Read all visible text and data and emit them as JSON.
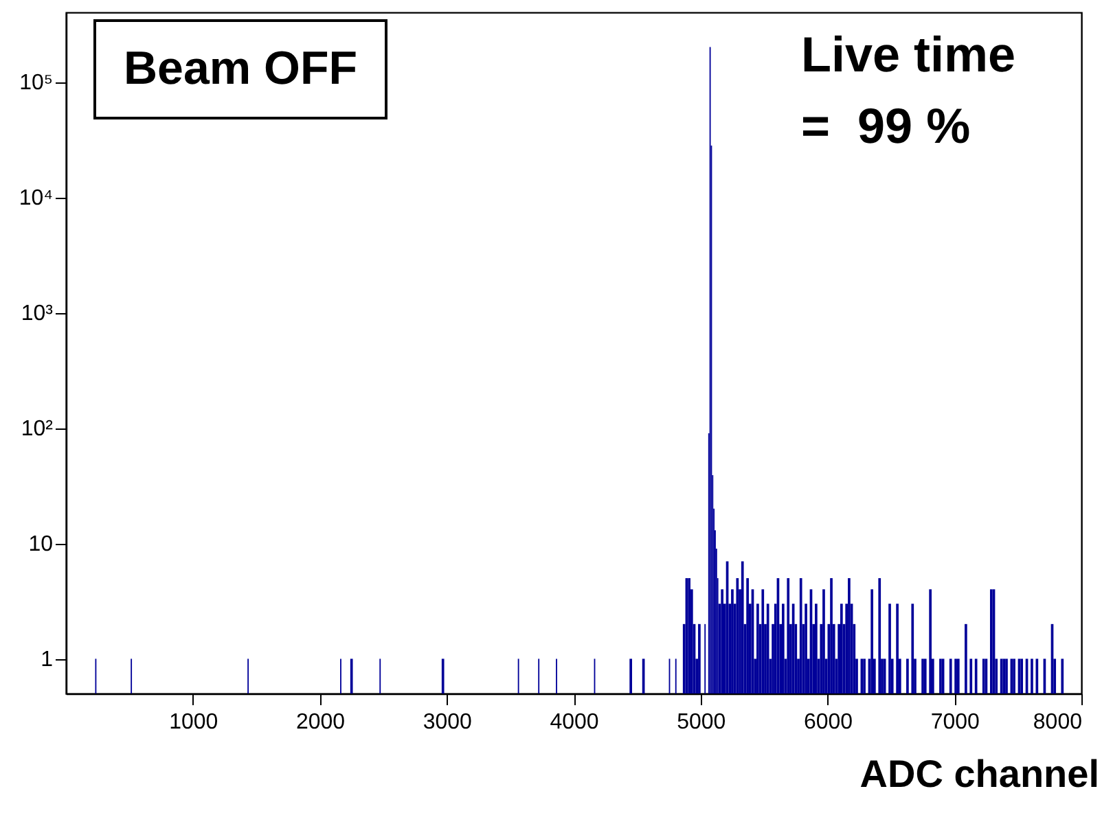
{
  "chart_data": {
    "type": "histogram",
    "xlabel": "ADC channel",
    "annotations": [
      "Beam OFF",
      "Live time\n=  99 %"
    ],
    "color": "#000099",
    "log": "y",
    "grid": false,
    "xlim": [
      0,
      8000
    ],
    "xticks": [
      1000,
      2000,
      3000,
      4000,
      5000,
      6000,
      7000,
      8000
    ],
    "ylim": [
      0.5,
      400000
    ],
    "yticks": [
      1,
      10,
      {
        "value": 100,
        "label": "10²"
      },
      {
        "value": 1000,
        "label": "10³"
      },
      {
        "value": 10000,
        "label": "10⁴"
      },
      {
        "value": 100000,
        "label": "10⁵"
      }
    ],
    "bins": [
      230,
      240,
      510,
      520,
      1430,
      1440,
      2160,
      2170,
      2240,
      2260,
      2470,
      2480,
      2960,
      2980,
      3560,
      3570,
      3720,
      3730,
      3860,
      3870,
      4160,
      4170,
      4440,
      4460,
      4540,
      4560,
      4750,
      4760,
      4800,
      4810,
      4860,
      4880,
      4900,
      4920,
      4940,
      4960,
      4980,
      5000,
      5030,
      5040,
      5060,
      5070,
      5080,
      5090,
      5100,
      5110,
      5120,
      5130,
      5140,
      5160,
      5180,
      5200,
      5220,
      5240,
      5260,
      5280,
      5300,
      5320,
      5340,
      5360,
      5380,
      5400,
      5420,
      5440,
      5460,
      5480,
      5500,
      5520,
      5540,
      5560,
      5580,
      5600,
      5620,
      5640,
      5660,
      5680,
      5700,
      5720,
      5740,
      5760,
      5780,
      5800,
      5820,
      5840,
      5860,
      5880,
      5900,
      5920,
      5940,
      5960,
      5980,
      6000,
      6020,
      6040,
      6060,
      6080,
      6100,
      6120,
      6140,
      6160,
      6180,
      6200,
      6220,
      6240,
      6260,
      6280,
      6300,
      6320,
      6340,
      6360,
      6380,
      6400,
      6420,
      6440,
      6460,
      6480,
      6500,
      6520,
      6540,
      6560,
      6580,
      6620,
      6640,
      6660,
      6680,
      6700,
      6740,
      6760,
      6780,
      6800,
      6820,
      6840,
      6880,
      6900,
      6920,
      6960,
      6980,
      7000,
      7020,
      7040,
      7080,
      7100,
      7120,
      7140,
      7160,
      7180,
      7220,
      7240,
      7260,
      7280,
      7300,
      7320,
      7340,
      7360,
      7380,
      7400,
      7420,
      7440,
      7460,
      7480,
      7500,
      7520,
      7540,
      7560,
      7580,
      7600,
      7620,
      7640,
      7660,
      7700,
      7720,
      7760,
      7780,
      7800,
      7840,
      7860
    ],
    "values": [
      1,
      null,
      1,
      null,
      1,
      null,
      1,
      null,
      1,
      null,
      1,
      null,
      1,
      null,
      1,
      null,
      1,
      null,
      1,
      null,
      1,
      null,
      1,
      null,
      1,
      null,
      1,
      null,
      1,
      null,
      2,
      5,
      5,
      4,
      2,
      1,
      2,
      null,
      2,
      null,
      90,
      200000,
      28000,
      39,
      20,
      13,
      9,
      5,
      3,
      4,
      3,
      7,
      3,
      4,
      3,
      5,
      4,
      7,
      2,
      5,
      3,
      4,
      1,
      3,
      2,
      4,
      2,
      3,
      1,
      2,
      3,
      5,
      2,
      3,
      1,
      5,
      2,
      3,
      2,
      1,
      5,
      2,
      3,
      1,
      4,
      2,
      3,
      1,
      2,
      4,
      1,
      2,
      5,
      2,
      1,
      2,
      3,
      2,
      3,
      5,
      3,
      2,
      1,
      null,
      1,
      1,
      null,
      1,
      4,
      1,
      null,
      5,
      1,
      1,
      null,
      3,
      1,
      null,
      3,
      1,
      null,
      1,
      null,
      3,
      1,
      null,
      1,
      1,
      null,
      4,
      1,
      null,
      1,
      1,
      null,
      1,
      null,
      1,
      1,
      null,
      2,
      null,
      1,
      null,
      1,
      null,
      1,
      1,
      null,
      4,
      4,
      1,
      null,
      1,
      1,
      1,
      null,
      1,
      1,
      null,
      1,
      1,
      null,
      1,
      null,
      1,
      null,
      1,
      null,
      1,
      null,
      2,
      1,
      null,
      1
    ]
  }
}
